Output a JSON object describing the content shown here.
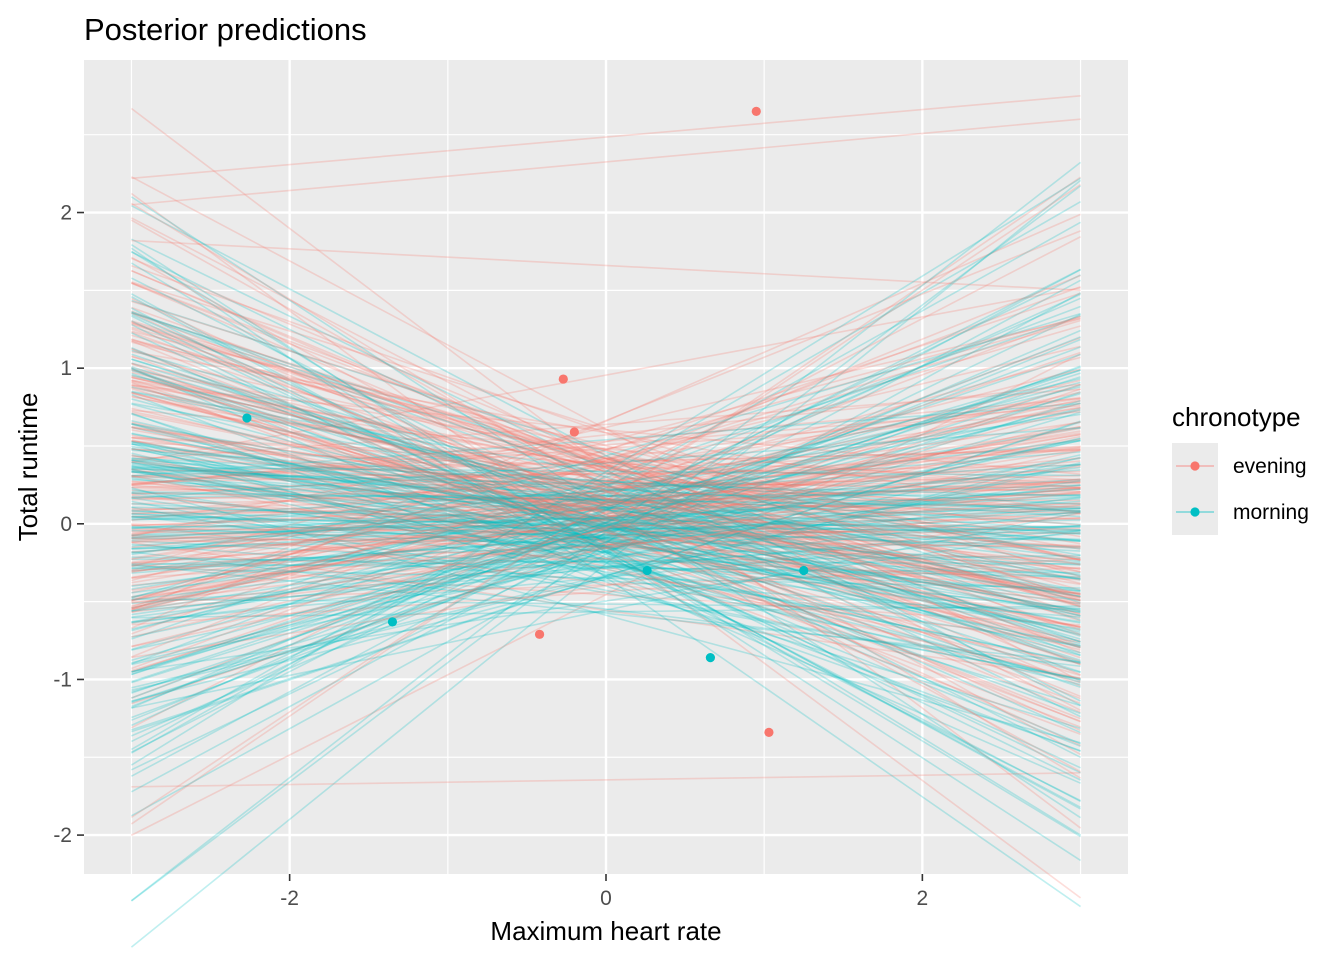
{
  "chart_data": {
    "type": "line",
    "title": "Posterior predictions",
    "xlabel": "Maximum heart rate",
    "ylabel": "Total runtime",
    "xlim": [
      -3.3,
      3.3
    ],
    "ylim": [
      -2.25,
      2.98
    ],
    "x_ticks": [
      -2,
      0,
      2
    ],
    "x_tick_labels": [
      "-2",
      "0",
      "2"
    ],
    "y_ticks": [
      -2,
      -1,
      0,
      1,
      2
    ],
    "y_tick_labels": [
      "-2",
      "-1",
      "0",
      "1",
      "2"
    ],
    "grid": true,
    "legend": {
      "title": "chronotype",
      "placement": "right",
      "entries": [
        {
          "label": "evening",
          "color": "#F8766D"
        },
        {
          "label": "morning",
          "color": "#00BFC4"
        }
      ]
    },
    "line_x_range": [
      -3,
      3
    ],
    "line_alpha": 0.25,
    "lines_per_group": 200,
    "series": [
      {
        "name": "evening",
        "color": "#F8766D",
        "line_intercept_mean": 0.15,
        "line_intercept_sd": 0.25,
        "line_slope_mean": -0.03,
        "line_slope_sd": 0.28,
        "extra_lines": [
          [
            -3,
            2.22,
            3,
            2.75
          ],
          [
            -3,
            1.82,
            3,
            1.5
          ],
          [
            -3,
            2.05,
            3,
            2.6
          ],
          [
            -3,
            -1.69,
            3,
            -1.6
          ]
        ],
        "points": [
          {
            "x": 0.95,
            "y": 2.65
          },
          {
            "x": -0.27,
            "y": 0.93
          },
          {
            "x": -0.2,
            "y": 0.59
          },
          {
            "x": -0.42,
            "y": -0.71
          },
          {
            "x": 1.03,
            "y": -1.34
          }
        ]
      },
      {
        "name": "morning",
        "color": "#00BFC4",
        "line_intercept_mean": -0.02,
        "line_intercept_sd": 0.22,
        "line_slope_mean": -0.02,
        "line_slope_sd": 0.3,
        "extra_lines": [
          [
            -3,
            -1.55,
            3,
            2.22
          ],
          [
            -3,
            1.75,
            3,
            -2.0
          ],
          [
            -3,
            -1.45,
            3,
            2.07
          ]
        ],
        "points": [
          {
            "x": -2.27,
            "y": 0.68
          },
          {
            "x": -1.35,
            "y": -0.63
          },
          {
            "x": 0.26,
            "y": -0.3
          },
          {
            "x": 0.66,
            "y": -0.86
          },
          {
            "x": 1.25,
            "y": -0.3
          }
        ]
      }
    ]
  }
}
